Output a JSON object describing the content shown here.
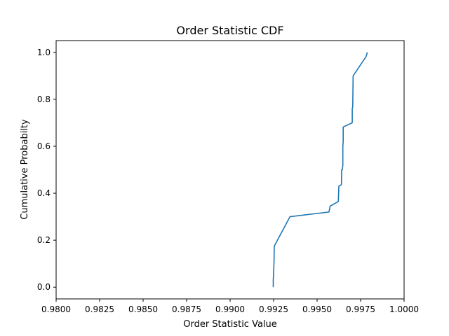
{
  "chart_data": {
    "type": "line",
    "title": "Order Statistic CDF",
    "xlabel": "Order Statistic Value",
    "ylabel": "Cumulative Probabilty",
    "xlim": [
      0.98,
      1.0
    ],
    "ylim": [
      -0.05,
      1.05
    ],
    "xticks": [
      0.98,
      0.9825,
      0.985,
      0.9875,
      0.99,
      0.9925,
      0.995,
      0.9975,
      1.0
    ],
    "xtick_labels": [
      "0.9800",
      "0.9825",
      "0.9850",
      "0.9875",
      "0.9900",
      "0.9925",
      "0.9950",
      "0.9975",
      "1.0000"
    ],
    "yticks": [
      0.0,
      0.2,
      0.4,
      0.6,
      0.8,
      1.0
    ],
    "ytick_labels": [
      "0.0",
      "0.2",
      "0.4",
      "0.6",
      "0.8",
      "1.0"
    ],
    "grid": false,
    "legend": false,
    "series": [
      {
        "color": "#1f77b4",
        "x": [
          0.99248,
          0.99248,
          0.9925,
          0.99252,
          0.99254,
          0.99344,
          0.99568,
          0.99575,
          0.99622,
          0.99625,
          0.99637,
          0.9964,
          0.99641,
          0.99645,
          0.99648,
          0.99648,
          0.99648,
          0.9965,
          0.9965,
          0.9965,
          0.9965,
          0.9965,
          0.9965,
          0.99702,
          0.99702,
          0.99702,
          0.99705,
          0.99705,
          0.99707,
          0.9978,
          0.99785,
          0.99788
        ],
        "y": [
          0.0,
          0.03,
          0.06,
          0.1,
          0.175,
          0.3,
          0.32,
          0.345,
          0.365,
          0.43,
          0.435,
          0.44,
          0.5,
          0.5,
          0.52,
          0.55,
          0.6,
          0.62,
          0.64,
          0.66,
          0.68,
          0.68,
          0.682,
          0.7,
          0.72,
          0.76,
          0.77,
          0.78,
          0.9,
          0.98,
          0.99,
          1.0
        ]
      }
    ]
  }
}
